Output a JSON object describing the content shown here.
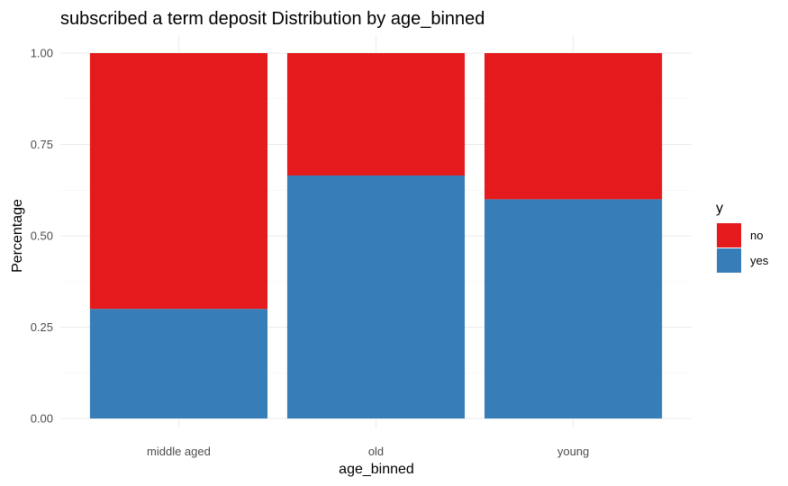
{
  "chart_data": {
    "type": "bar",
    "stacked": true,
    "title": "subscribed a term deposit Distribution by age_binned",
    "xlabel": "age_binned",
    "ylabel": "Percentage",
    "categories": [
      "middle aged",
      "old",
      "young"
    ],
    "ylim": [
      0,
      1
    ],
    "yticks": [
      0,
      0.25,
      0.5,
      0.75,
      1
    ],
    "ytick_labels": [
      "0.00",
      "0.25",
      "0.50",
      "0.75",
      "1.00"
    ],
    "grid": true,
    "legend": {
      "title": "y",
      "placement": "right"
    },
    "series": [
      {
        "name": "no",
        "color": "#E41A1C",
        "values": [
          0.7,
          0.335,
          0.4
        ]
      },
      {
        "name": "yes",
        "color": "#377EB8",
        "values": [
          0.3,
          0.665,
          0.6
        ]
      }
    ]
  }
}
